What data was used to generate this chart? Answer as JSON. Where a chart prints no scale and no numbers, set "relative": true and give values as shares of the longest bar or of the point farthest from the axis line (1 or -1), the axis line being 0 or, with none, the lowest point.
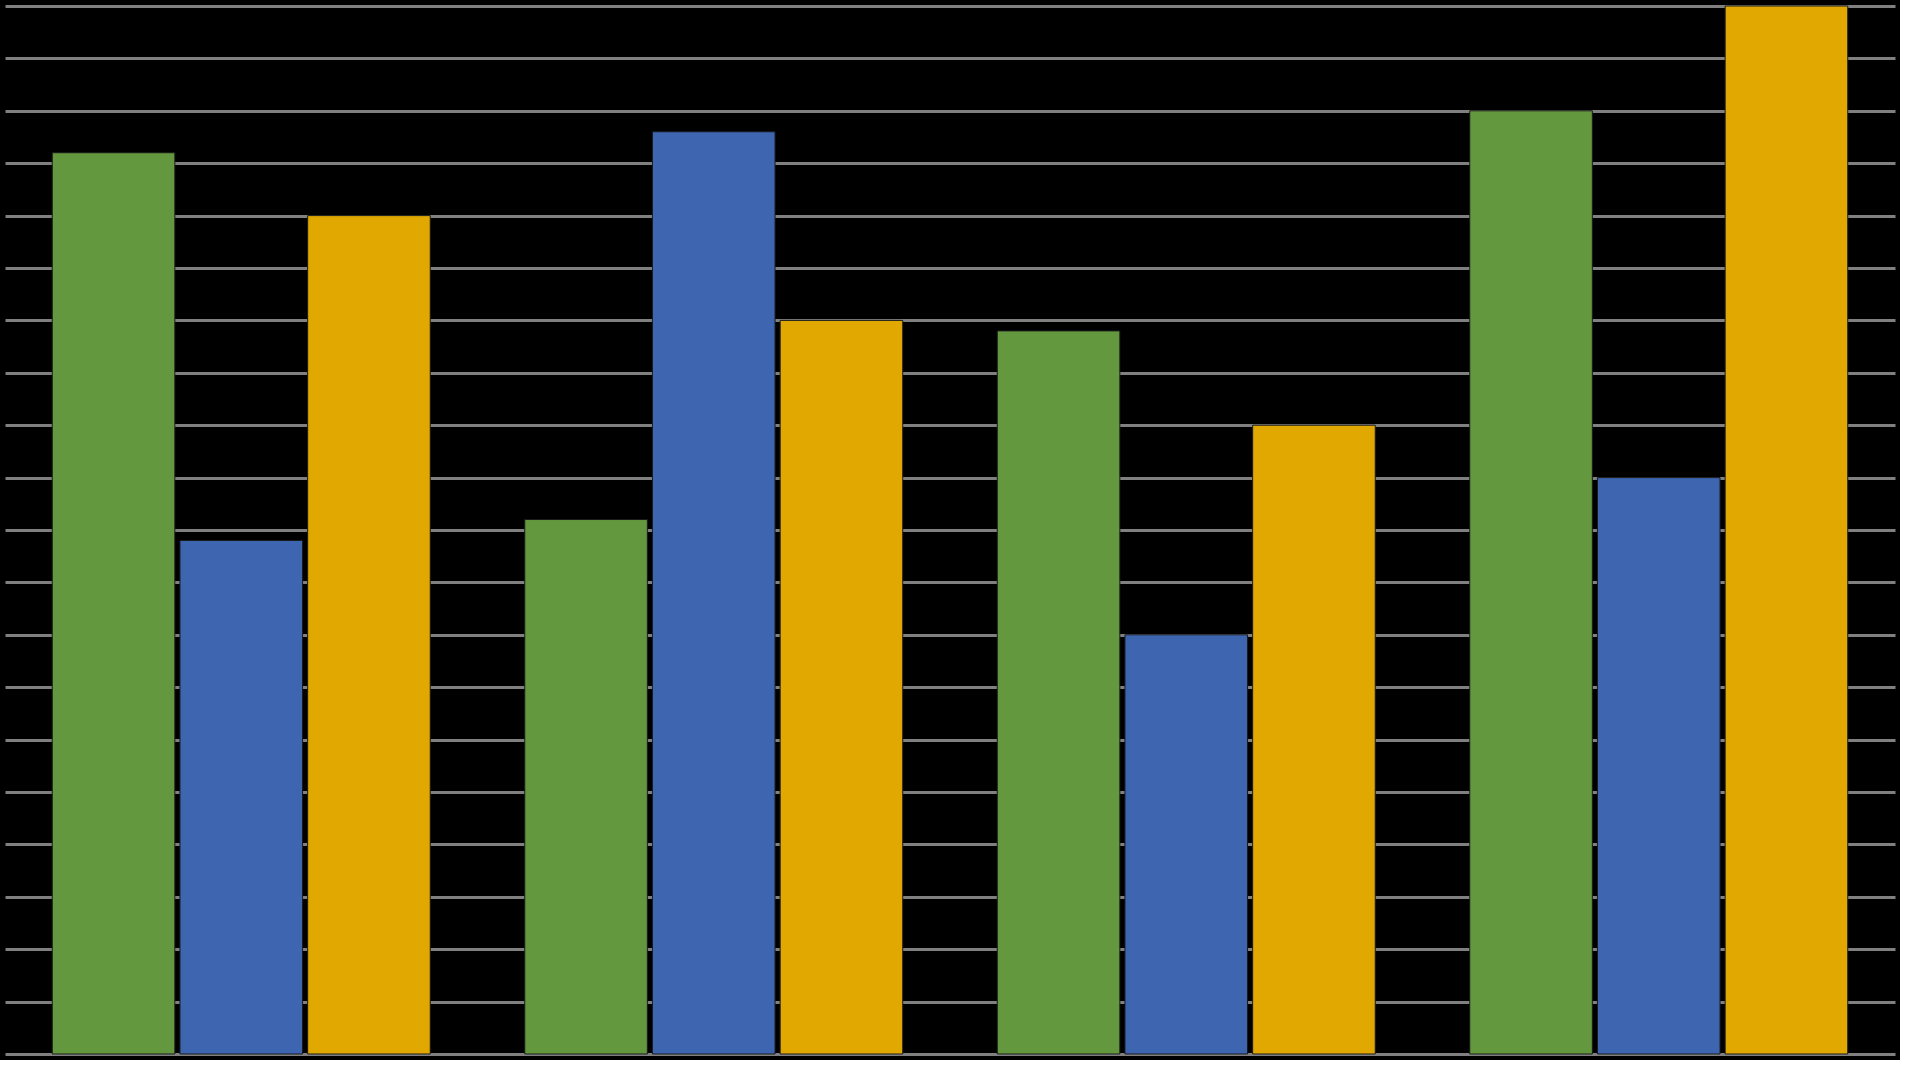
{
  "chart_data": {
    "type": "bar",
    "relative": true,
    "categories": [
      null,
      null,
      null,
      null
    ],
    "series": [
      {
        "color": "#63983f",
        "values": [
          0.86,
          0.51,
          0.69,
          0.9
        ]
      },
      {
        "color": "#3d65b0",
        "values": [
          0.49,
          0.88,
          0.4,
          0.55
        ]
      },
      {
        "color": "#e0a800",
        "values": [
          0.8,
          0.7,
          0.6,
          1.0
        ]
      }
    ],
    "grid": "y",
    "tick_labels": false,
    "legend": false
  }
}
